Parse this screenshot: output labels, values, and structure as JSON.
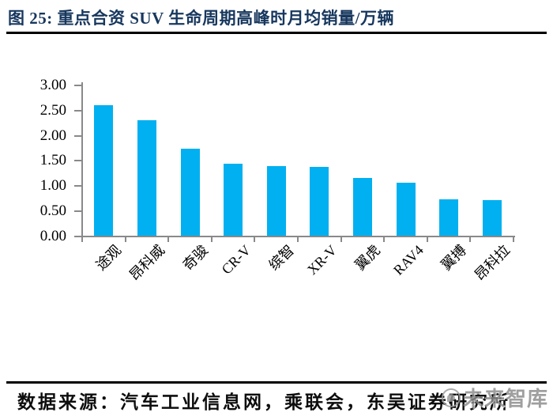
{
  "title": "图 25:  重点合资 SUV 生命周期高峰时月均销量/万辆",
  "footer": {
    "source_text": "数据来源：汽车工业信息网，乘联会，东吴证券研究所"
  },
  "watermark": {
    "logo": "circle-logo-icon",
    "text": "未来智库"
  },
  "colors": {
    "title": "#17375E",
    "bar": "#00B0F0",
    "axis": "#898989",
    "rule": "#000000",
    "watermark": "#8b8b8b"
  },
  "chart_data": {
    "type": "bar",
    "title": "重点合资SUV生命周期高峰时月均销量/万辆",
    "categories": [
      "途观",
      "昂科威",
      "奇骏",
      "CR-V",
      "缤智",
      "XR-V",
      "翼虎",
      "RAV4",
      "翼搏",
      "昂科拉"
    ],
    "values": [
      2.6,
      2.3,
      1.73,
      1.43,
      1.39,
      1.37,
      1.15,
      1.06,
      0.72,
      0.7
    ],
    "xlabel": "",
    "ylabel": "",
    "ylim": [
      0,
      3.0
    ],
    "ytick_step": 0.5,
    "yticks": [
      "3.00",
      "2.50",
      "2.00",
      "1.50",
      "1.00",
      "0.50",
      "0.00"
    ],
    "grid": false,
    "legend": false,
    "bar_color": "#00B0F0",
    "axis_color": "#898989",
    "xlabel_rotation_deg": 45
  }
}
